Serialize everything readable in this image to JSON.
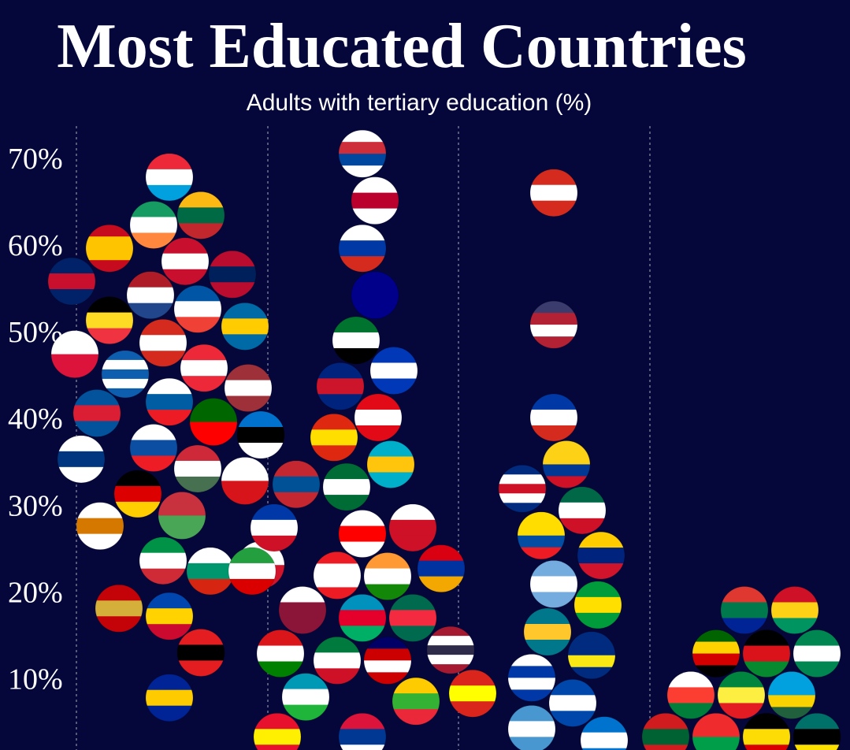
{
  "chart_data": {
    "type": "beeswarm",
    "title": "Most Educated Countries",
    "subtitle": "Adults with tertiary education (%)",
    "ylim": [
      2,
      74
    ],
    "yticks": [
      {
        "value": 10,
        "label": "10%"
      },
      {
        "value": 20,
        "label": "20%"
      },
      {
        "value": 30,
        "label": "30%"
      },
      {
        "value": 40,
        "label": "40%"
      },
      {
        "value": 50,
        "label": "50%"
      },
      {
        "value": 60,
        "label": "60%"
      },
      {
        "value": 70,
        "label": "70%"
      }
    ],
    "series": [
      {
        "values": [
          68.2,
          63.8,
          62.7,
          60.0,
          58.5,
          57.0,
          56.2,
          54.6,
          53.0,
          51.7,
          51.0,
          49.1,
          47.8,
          46.2,
          45.5,
          43.9,
          42.3,
          41.0,
          40.0,
          38.5,
          37.0,
          35.7,
          34.6,
          33.2,
          31.7,
          29.2,
          28.0,
          24.0,
          22.8,
          23.5,
          17.6,
          18.5,
          13.4,
          8.2
        ],
        "colors": [
          [
            "#ed2939",
            "#fff",
            "#00a1de"
          ],
          [
            "#fdb913",
            "#006a44",
            "#c1272d"
          ],
          [
            "#169b62",
            "#fff",
            "#ff883e"
          ],
          [
            "#c60b1e",
            "#ffc400",
            "#ffc400",
            "#c60b1e"
          ],
          [
            "#c8102e",
            "#fff",
            "#c8102e"
          ],
          [
            "#ba0c2f",
            "#00205b",
            "#ba0c2f"
          ],
          [
            "#012169",
            "#c8102e",
            "#012169"
          ],
          [
            "#ae1c28",
            "#fff",
            "#21468b"
          ],
          [
            "#0055a4",
            "#fff",
            "#ef4135"
          ],
          [
            "#000",
            "#fdda24",
            "#ef3340"
          ],
          [
            "#006aa7",
            "#fecc00",
            "#006aa7"
          ],
          [
            "#d52b1e",
            "#fff",
            "#d52b1e"
          ],
          [
            "#fff",
            "#dc143c"
          ],
          [
            "#ed2939",
            "#fff",
            "#ed2939"
          ],
          [
            "#0d5eaf",
            "#fff",
            "#0d5eaf",
            "#fff",
            "#0d5eaf"
          ],
          [
            "#9e3039",
            "#fff",
            "#9e3039"
          ],
          [
            "#fff",
            "#005da4",
            "#ed1c24"
          ],
          [
            "#02529c",
            "#dc1e35",
            "#02529c"
          ],
          [
            "#006600",
            "#ff0000"
          ],
          [
            "#0072ce",
            "#000",
            "#fff"
          ],
          [
            "#fff",
            "#0b4ea2",
            "#ee1c25"
          ],
          [
            "#fff",
            "#003580",
            "#fff"
          ],
          [
            "#ce2939",
            "#fff",
            "#477050"
          ],
          [
            "#fff",
            "#d7141a"
          ],
          [
            "#000",
            "#dd0000",
            "#ffce00"
          ],
          [
            "#c8313e",
            "#4aa657"
          ],
          [
            "#fff",
            "#d57800",
            "#fff"
          ],
          [
            "#009246",
            "#fff",
            "#ce2b37"
          ],
          [
            "#fff",
            "#00966e",
            "#d62612"
          ],
          [
            "#fff",
            "#cf142b"
          ],
          [
            "#0046ae",
            "#ffd200",
            "#cc092f"
          ],
          [
            "#c40308",
            "#d4af3a",
            "#c40308"
          ],
          [
            "#e41e20",
            "#000",
            "#e41e20"
          ],
          [
            "#002395",
            "#fecb00",
            "#002395"
          ]
        ]
      },
      {
        "values": [
          70.9,
          65.5,
          60.0,
          54.6,
          49.4,
          45.9,
          44.1,
          40.5,
          38.2,
          35.1,
          32.5,
          32.8,
          27.1,
          27.8,
          27.8,
          22.2,
          22.3,
          23.1,
          22.8,
          17.4,
          17.4,
          18.3,
          12.5,
          12.5,
          13.3,
          13.7,
          7.8,
          8.3,
          8.7,
          3.7,
          3.7
        ],
        "colors": [
          [
            "#fff",
            "#cd2e3a",
            "#0047a0",
            "#fff"
          ],
          [
            "#fff",
            "#bc002d",
            "#fff"
          ],
          [
            "#fff",
            "#0039a6",
            "#d52b1e"
          ],
          [
            "#00008b",
            "#00008b"
          ],
          [
            "#00732f",
            "#fff",
            "#000"
          ],
          [
            "#0038b8",
            "#fff",
            "#0038b8"
          ],
          [
            "#00247d",
            "#cc142b",
            "#00247d"
          ],
          [
            "#e30a17",
            "#fff",
            "#e30a17"
          ],
          [
            "#de2910",
            "#ffde00",
            "#de2910"
          ],
          [
            "#00afca",
            "#fec50c",
            "#00afca"
          ],
          [
            "#006c35",
            "#fff",
            "#006c35"
          ],
          [
            "#c4272f",
            "#015197",
            "#c4272f"
          ],
          [
            "#fff",
            "#ff0000",
            "#fff"
          ],
          [
            "#fff",
            "#ce1126",
            "#ce1126"
          ],
          [
            "#0038a8",
            "#fff",
            "#ce1126"
          ],
          [
            "#ff9933",
            "#fff",
            "#138808"
          ],
          [
            "#ed1c24",
            "#fff",
            "#fff",
            "#ed1c24"
          ],
          [
            "#d90012",
            "#0033a0",
            "#f2a800"
          ],
          [
            "#239f40",
            "#fff",
            "#da0000"
          ],
          [
            "#0092bc",
            "#e4002b",
            "#00af66"
          ],
          [
            "#006a4e",
            "#f42a41",
            "#006a4e"
          ],
          [
            "#fff",
            "#8a1538",
            "#8a1538"
          ],
          [
            "#010066",
            "#cc0001",
            "#fff",
            "#cc0001"
          ],
          [
            "#007a3d",
            "#fff",
            "#ce1126"
          ],
          [
            "#db161b",
            "#fff",
            "#008000"
          ],
          [
            "#a51931",
            "#fff",
            "#2d2a4a",
            "#fff",
            "#a51931"
          ],
          [
            "#fecb00",
            "#34b233",
            "#ea2839"
          ],
          [
            "#0099b5",
            "#fff",
            "#1eb53a"
          ],
          [
            "#da251d",
            "#ffff00",
            "#da251d"
          ],
          [
            "#dc143c",
            "#003893",
            "#fff"
          ],
          [
            "#e8112d",
            "#ffef00",
            "#e8112d"
          ]
        ]
      },
      {
        "values": [
          66.4,
          51.2,
          40.5,
          35.1,
          32.3,
          29.8,
          26.9,
          24.6,
          21.3,
          18.9,
          15.8,
          13.1,
          10.5,
          7.6,
          4.6,
          3.3
        ],
        "colors": [
          [
            "#d52b1e",
            "#fff",
            "#d52b1e"
          ],
          [
            "#3c3b6e",
            "#b22234",
            "#fff",
            "#b22234"
          ],
          [
            "#0039a6",
            "#fff",
            "#d52b1e"
          ],
          [
            "#fcd116",
            "#fcd116",
            "#003893",
            "#ce1126"
          ],
          [
            "#002b7f",
            "#fff",
            "#ce1126",
            "#fff",
            "#002b7f"
          ],
          [
            "#006847",
            "#fff",
            "#ce1126"
          ],
          [
            "#ffdd00",
            "#ffdd00",
            "#034ea2",
            "#ed1c24"
          ],
          [
            "#ffcc00",
            "#00247d",
            "#cf142b"
          ],
          [
            "#74acdf",
            "#fff",
            "#74acdf"
          ],
          [
            "#009c3b",
            "#ffdf00",
            "#009c3b"
          ],
          [
            "#00778b",
            "#ffc72c",
            "#00778b"
          ],
          [
            "#002b7f",
            "#002b7f",
            "#f9e814",
            "#002b7f"
          ],
          [
            "#fff",
            "#0038a8",
            "#fff",
            "#0038a8"
          ],
          [
            "#0047ab",
            "#fff",
            "#0047ab"
          ],
          [
            "#4997d0",
            "#fff",
            "#4997d0"
          ],
          [
            "#0073cf",
            "#fff",
            "#0073cf"
          ]
        ]
      },
      {
        "values": [
          18.3,
          18.3,
          13.3,
          13.3,
          13.3,
          8.5,
          8.5,
          8.5,
          3.7,
          3.7,
          3.7,
          3.7
        ],
        "colors": [
          [
            "#de3831",
            "#007a4d",
            "#002395"
          ],
          [
            "#ce1126",
            "#fcd116",
            "#009460"
          ],
          [
            "#000",
            "#da121a",
            "#078930"
          ],
          [
            "#006400",
            "#ffd200",
            "#d40000",
            "#000"
          ],
          [
            "#008751",
            "#fff",
            "#008751"
          ],
          [
            "#00853f",
            "#fdef42",
            "#e31b23"
          ],
          [
            "#00a1de",
            "#00a1de",
            "#fad201",
            "#20603d"
          ],
          [
            "#fff",
            "#fc3d32",
            "#007e3a"
          ],
          [
            "#000",
            "#fcdc04",
            "#d90000"
          ],
          [
            "#ef2b2d",
            "#009e49"
          ],
          [
            "#007168",
            "#000",
            "#fce100"
          ],
          [
            "#d01c1f",
            "#006233",
            "#d01c1f"
          ]
        ]
      }
    ]
  }
}
